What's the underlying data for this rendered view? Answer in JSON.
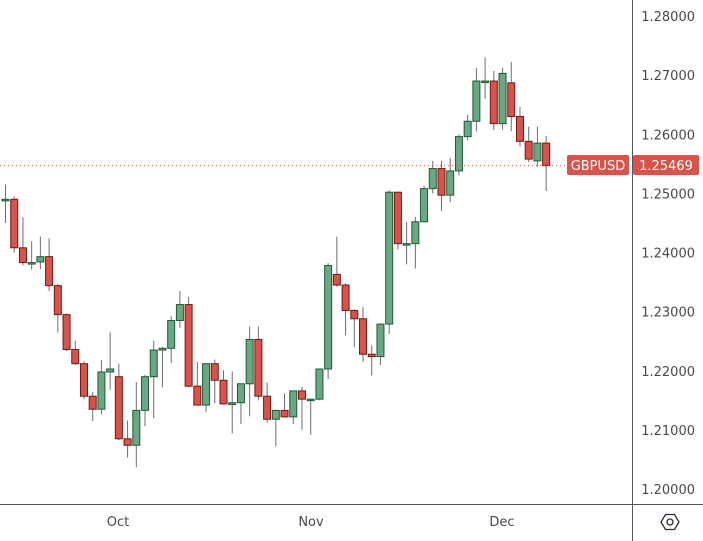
{
  "chart_data": {
    "type": "candlestick",
    "symbol": "GBPUSD",
    "last_price": "1.25469",
    "title": "",
    "xlabel": "",
    "ylabel": "",
    "ylim": [
      1.195,
      1.283
    ],
    "y_ticks": [
      "1.28000",
      "1.27000",
      "1.26000",
      "1.25000",
      "1.24000",
      "1.23000",
      "1.22000",
      "1.21000",
      "1.20000"
    ],
    "x_ticks": [
      "Oct",
      "Nov",
      "Dec"
    ],
    "grid": false,
    "colors": {
      "up": "#6aa884",
      "up_border": "#1e5a36",
      "down": "#d9534a",
      "down_border": "#6e1a14",
      "wick": "#6d6d6d",
      "price_line": "#d9534a"
    },
    "candles": [
      {
        "o": 1.249,
        "h": 1.2515,
        "l": 1.245,
        "c": 1.249
      },
      {
        "o": 1.249,
        "h": 1.2495,
        "l": 1.24,
        "c": 1.2408
      },
      {
        "o": 1.2408,
        "h": 1.246,
        "l": 1.2378,
        "c": 1.2383
      },
      {
        "o": 1.2383,
        "h": 1.2419,
        "l": 1.2371,
        "c": 1.2383
      },
      {
        "o": 1.2384,
        "h": 1.2427,
        "l": 1.2372,
        "c": 1.2393
      },
      {
        "o": 1.2393,
        "h": 1.2424,
        "l": 1.2335,
        "c": 1.2344
      },
      {
        "o": 1.2344,
        "h": 1.2347,
        "l": 1.2265,
        "c": 1.2295
      },
      {
        "o": 1.2295,
        "h": 1.2297,
        "l": 1.2233,
        "c": 1.2236
      },
      {
        "o": 1.2236,
        "h": 1.2251,
        "l": 1.221,
        "c": 1.2212
      },
      {
        "o": 1.2212,
        "h": 1.2216,
        "l": 1.2152,
        "c": 1.2157
      },
      {
        "o": 1.2157,
        "h": 1.2164,
        "l": 1.2115,
        "c": 1.2135
      },
      {
        "o": 1.2135,
        "h": 1.2218,
        "l": 1.2126,
        "c": 1.2198
      },
      {
        "o": 1.2198,
        "h": 1.2265,
        "l": 1.2168,
        "c": 1.2203
      },
      {
        "o": 1.219,
        "h": 1.2212,
        "l": 1.2083,
        "c": 1.2085
      },
      {
        "o": 1.2085,
        "h": 1.2116,
        "l": 1.2053,
        "c": 1.2074
      },
      {
        "o": 1.2074,
        "h": 1.2181,
        "l": 1.2037,
        "c": 1.2133
      },
      {
        "o": 1.2133,
        "h": 1.2193,
        "l": 1.2106,
        "c": 1.219
      },
      {
        "o": 1.219,
        "h": 1.2251,
        "l": 1.212,
        "c": 1.2235
      },
      {
        "o": 1.2235,
        "h": 1.224,
        "l": 1.2172,
        "c": 1.2238
      },
      {
        "o": 1.2238,
        "h": 1.2293,
        "l": 1.2213,
        "c": 1.2285
      },
      {
        "o": 1.2285,
        "h": 1.2335,
        "l": 1.2272,
        "c": 1.2312
      },
      {
        "o": 1.2312,
        "h": 1.2325,
        "l": 1.2172,
        "c": 1.2174
      },
      {
        "o": 1.2174,
        "h": 1.2215,
        "l": 1.2144,
        "c": 1.2142
      },
      {
        "o": 1.2142,
        "h": 1.2213,
        "l": 1.213,
        "c": 1.2212
      },
      {
        "o": 1.2212,
        "h": 1.2219,
        "l": 1.2145,
        "c": 1.2184
      },
      {
        "o": 1.2184,
        "h": 1.2201,
        "l": 1.2143,
        "c": 1.2144
      },
      {
        "o": 1.2143,
        "h": 1.2199,
        "l": 1.2094,
        "c": 1.2146
      },
      {
        "o": 1.2146,
        "h": 1.2174,
        "l": 1.211,
        "c": 1.2178
      },
      {
        "o": 1.2178,
        "h": 1.2275,
        "l": 1.2123,
        "c": 1.2253
      },
      {
        "o": 1.2253,
        "h": 1.2275,
        "l": 1.215,
        "c": 1.2157
      },
      {
        "o": 1.2157,
        "h": 1.218,
        "l": 1.2112,
        "c": 1.2118
      },
      {
        "o": 1.2118,
        "h": 1.2133,
        "l": 1.2072,
        "c": 1.2133
      },
      {
        "o": 1.2133,
        "h": 1.2162,
        "l": 1.2123,
        "c": 1.2122
      },
      {
        "o": 1.2122,
        "h": 1.2166,
        "l": 1.211,
        "c": 1.2166
      },
      {
        "o": 1.2166,
        "h": 1.2173,
        "l": 1.21,
        "c": 1.2152
      },
      {
        "o": 1.2152,
        "h": 1.2152,
        "l": 1.2092,
        "c": 1.2152
      },
      {
        "o": 1.2152,
        "h": 1.2201,
        "l": 1.215,
        "c": 1.2203
      },
      {
        "o": 1.2203,
        "h": 1.2382,
        "l": 1.2186,
        "c": 1.2378
      },
      {
        "o": 1.2363,
        "h": 1.2427,
        "l": 1.2342,
        "c": 1.2345
      },
      {
        "o": 1.2345,
        "h": 1.2348,
        "l": 1.226,
        "c": 1.2302
      },
      {
        "o": 1.2302,
        "h": 1.2304,
        "l": 1.224,
        "c": 1.2288
      },
      {
        "o": 1.2288,
        "h": 1.2308,
        "l": 1.2215,
        "c": 1.2228
      },
      {
        "o": 1.2228,
        "h": 1.2243,
        "l": 1.2192,
        "c": 1.2224
      },
      {
        "o": 1.2224,
        "h": 1.228,
        "l": 1.221,
        "c": 1.2279
      },
      {
        "o": 1.2279,
        "h": 1.2505,
        "l": 1.2262,
        "c": 1.2502
      },
      {
        "o": 1.2502,
        "h": 1.2502,
        "l": 1.2405,
        "c": 1.2415
      },
      {
        "o": 1.2415,
        "h": 1.2452,
        "l": 1.238,
        "c": 1.2415
      },
      {
        "o": 1.2415,
        "h": 1.246,
        "l": 1.2373,
        "c": 1.2452
      },
      {
        "o": 1.2452,
        "h": 1.2513,
        "l": 1.2452,
        "c": 1.2508
      },
      {
        "o": 1.2508,
        "h": 1.2555,
        "l": 1.25,
        "c": 1.2542
      },
      {
        "o": 1.2542,
        "h": 1.2555,
        "l": 1.247,
        "c": 1.2497
      },
      {
        "o": 1.2497,
        "h": 1.256,
        "l": 1.2485,
        "c": 1.2538
      },
      {
        "o": 1.2538,
        "h": 1.26,
        "l": 1.253,
        "c": 1.2596
      },
      {
        "o": 1.2596,
        "h": 1.2633,
        "l": 1.259,
        "c": 1.2622
      },
      {
        "o": 1.2622,
        "h": 1.2712,
        "l": 1.2605,
        "c": 1.269
      },
      {
        "o": 1.269,
        "h": 1.273,
        "l": 1.266,
        "c": 1.269
      },
      {
        "o": 1.269,
        "h": 1.2707,
        "l": 1.2607,
        "c": 1.2618
      },
      {
        "o": 1.2618,
        "h": 1.2712,
        "l": 1.2608,
        "c": 1.2703
      },
      {
        "o": 1.2687,
        "h": 1.2722,
        "l": 1.2605,
        "c": 1.263
      },
      {
        "o": 1.263,
        "h": 1.2646,
        "l": 1.2579,
        "c": 1.2588
      },
      {
        "o": 1.2588,
        "h": 1.2613,
        "l": 1.2553,
        "c": 1.2558
      },
      {
        "o": 1.2555,
        "h": 1.2613,
        "l": 1.2545,
        "c": 1.2585
      },
      {
        "o": 1.2585,
        "h": 1.2597,
        "l": 1.2504,
        "c": 1.2547
      }
    ]
  },
  "price_tag": {
    "symbol": "GBPUSD",
    "price": "1.25469"
  },
  "axis": {
    "y_labels": [
      "1.28000",
      "1.27000",
      "1.26000",
      "1.25000",
      "1.24000",
      "1.23000",
      "1.22000",
      "1.21000",
      "1.20000"
    ],
    "x_labels": [
      "Oct",
      "Nov",
      "Dec"
    ]
  },
  "settings_icon": "settings-hexagon-icon"
}
